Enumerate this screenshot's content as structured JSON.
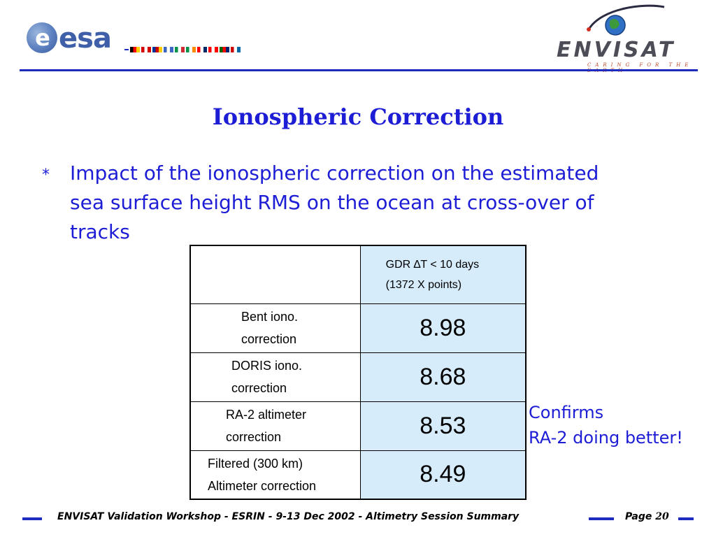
{
  "header": {
    "esa_logo_text": "esa",
    "envisat_logo_text": "ENVISAT",
    "envisat_tagline": "CARING FOR THE EARTH",
    "flags": [
      "#000000",
      "#ff0000",
      "#ffcc00",
      "#d40000",
      "#ffffff",
      "#d40000",
      "#003399",
      "#cc0000",
      "#ffcc00",
      "#3a66c4",
      "#ffffff",
      "#3a66c4",
      "#009246",
      "#ffffff",
      "#ce2b37",
      "#009246",
      "#ffffff",
      "#ff8c00",
      "#ff0000",
      "#ffffff",
      "#002868",
      "#ff0000",
      "#ffffff",
      "#ff0000",
      "#006600",
      "#ff0000",
      "#012169",
      "#cc0000",
      "#ffffff",
      "#006aa7",
      "#fecc00",
      "#ff0000"
    ]
  },
  "title": "Ionospheric Correction",
  "bullet": {
    "marker": "*",
    "text": "Impact of the ionospheric correction on the estimated\nsea surface height RMS on the ocean at cross-over of\ntracks"
  },
  "table": {
    "header_line1": "GDR ∆T < 10 days",
    "header_line2": "(1372 X points)",
    "rows": [
      {
        "label_line1": "Bent iono.",
        "label_line2": "correction",
        "value": "8.98"
      },
      {
        "label_line1": "DORIS iono.",
        "label_line2": "correction",
        "value": "8.68"
      },
      {
        "label_line1": "RA-2 altimeter",
        "label_line2": "correction",
        "value": "8.53"
      },
      {
        "label_line1": "Filtered (300 km)",
        "label_line2": "Altimeter correction",
        "value": "8.49"
      }
    ]
  },
  "note": {
    "line1": "Confirms",
    "line2": "RA-2 doing better!"
  },
  "footer": {
    "text": "ENVISAT Validation Workshop - ESRIN - 9-13 Dec 2002 - Altimetry Session Summary",
    "page_label": "Page",
    "page_number": "20"
  },
  "colors": {
    "accent_blue": "#1d1dd6",
    "rule_blue": "#1d2bbf",
    "table_highlight": "#d6ecfb"
  }
}
